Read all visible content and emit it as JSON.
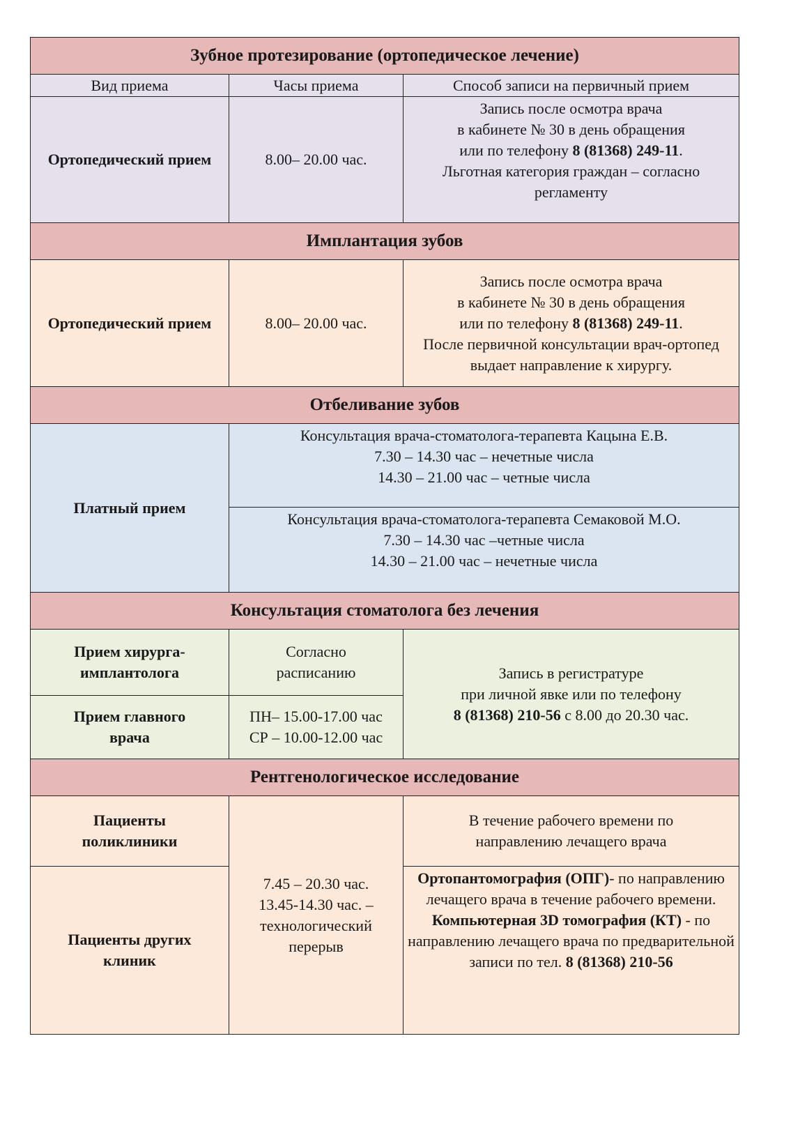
{
  "sections": [
    {
      "title": "Зубное протезирование (ортопедическое лечение)",
      "columns": [
        "Вид приема",
        "Часы приема",
        "Способ  записи на первичный прием"
      ],
      "row": {
        "type": "Ортопедический прием",
        "hours": "8.00– 20.00 час.",
        "method_1": "Запись после осмотра врача",
        "method_2": "в кабинете № 30 в день обращения",
        "method_3": "или по телефону ",
        "phone": "8 (81368) 249-11",
        "method_4": "Льготная категория граждан – согласно регламенту"
      }
    },
    {
      "title": "Имплантация зубов",
      "row": {
        "type": "Ортопедический прием",
        "hours": "8.00– 20.00 час.",
        "method_1": "Запись после осмотра врача",
        "method_2": "в кабинете № 30 в день обращения",
        "method_3": "или по телефону ",
        "phone": "8 (81368) 249-11",
        "method_4": "После первичной консультации врач-ортопед  выдает направление к хирургу."
      }
    },
    {
      "title": "Отбеливание зубов",
      "type": "Платный прием",
      "doctors": [
        {
          "name": "Консультация  врача-стоматолога-терапевта  Кацына Е.В.",
          "line1": "7.30 – 14.30 час – нечетные числа",
          "line2": "14.30 – 21.00 час – четные числа"
        },
        {
          "name": "Консультация  врача-стоматолога-терапевта  Семаковой М.О.",
          "line1": "7.30 – 14.30 час –четные числа",
          "line2": "14.30 – 21.00 час – нечетные числа"
        }
      ]
    },
    {
      "title": "Консультация стоматолога без лечения",
      "rows": [
        {
          "type": "Прием хирурга-имплантолога",
          "hours": "Согласно расписанию"
        },
        {
          "type": "Прием главного врача",
          "hours_1": "ПН– 15.00-17.00 час",
          "hours_2": "СР – 10.00-12.00 час"
        }
      ],
      "method_1": "Запись в регистратуре",
      "method_2": "при личной явке или по телефону",
      "phone": "8 (81368) 210-56",
      "method_3": " с 8.00 до 20.30 час."
    },
    {
      "title": "Рентгенологическое исследование",
      "rows": [
        {
          "type": "Пациенты поликлиники",
          "method": "В течение рабочего времени по направлению лечащего врача"
        },
        {
          "type": "Пациенты других клиник",
          "opg_bold": "Ортопантомография (ОПГ)",
          "opg_text": "- по направлению лечащего врача в течение рабочего времени.",
          "kt_bold": "Компьютерная 3D томография (КТ)",
          "kt_text": " - по направлению лечащего врача по предварительной записи по тел.  ",
          "phone": "8 (81368) 210-56"
        }
      ],
      "hours": "7.45 – 20.30 час. 13.45-14.30 час. – технологический перерыв"
    }
  ]
}
